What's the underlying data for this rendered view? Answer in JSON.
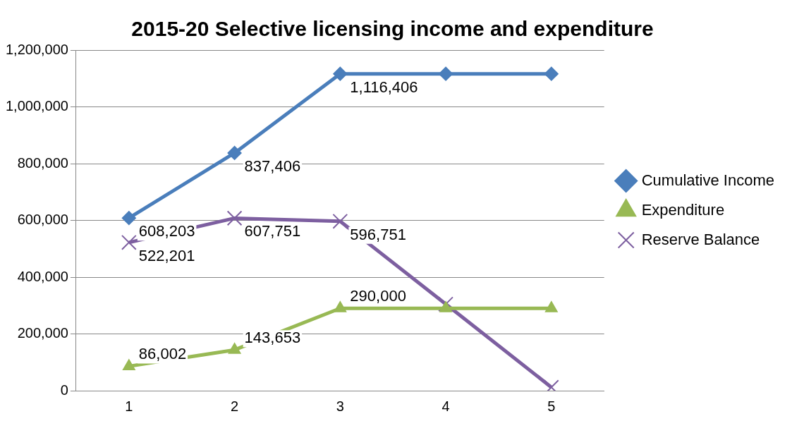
{
  "chart_data": {
    "type": "line",
    "title": "2015-20 Selective licensing income and expenditure",
    "categories": [
      "1",
      "2",
      "3",
      "4",
      "5"
    ],
    "series": [
      {
        "name": "Cumulative Income",
        "color": "#4a7ebb",
        "marker": "diamond",
        "values": [
          608203,
          837406,
          1116406,
          1116406,
          1116406
        ],
        "value_labels": [
          "608,203",
          "837,406",
          "1,116,406",
          null,
          null
        ]
      },
      {
        "name": "Expenditure",
        "color": "#98b954",
        "marker": "triangle",
        "values": [
          86002,
          143653,
          290000,
          290000,
          290000
        ],
        "value_labels": [
          "86,002",
          "143,653",
          "290,000",
          null,
          null
        ]
      },
      {
        "name": "Reserve Balance",
        "color": "#7d5fa0",
        "marker": "cross",
        "values": [
          522201,
          607751,
          596751,
          305000,
          12000
        ],
        "value_labels": [
          "522,201",
          "607,751",
          "596,751",
          null,
          null
        ]
      }
    ],
    "ylim": [
      0,
      1200000
    ],
    "yticks": [
      {
        "value": 0,
        "label": "0"
      },
      {
        "value": 200000,
        "label": "200,000"
      },
      {
        "value": 400000,
        "label": "400,000"
      },
      {
        "value": 600000,
        "label": "600,000"
      },
      {
        "value": 800000,
        "label": "800,000"
      },
      {
        "value": 1000000,
        "label": "1,000,000"
      },
      {
        "value": 1200000,
        "label": "1,200,000"
      }
    ],
    "grid": "y",
    "legend": "right",
    "line_style": "solid"
  }
}
